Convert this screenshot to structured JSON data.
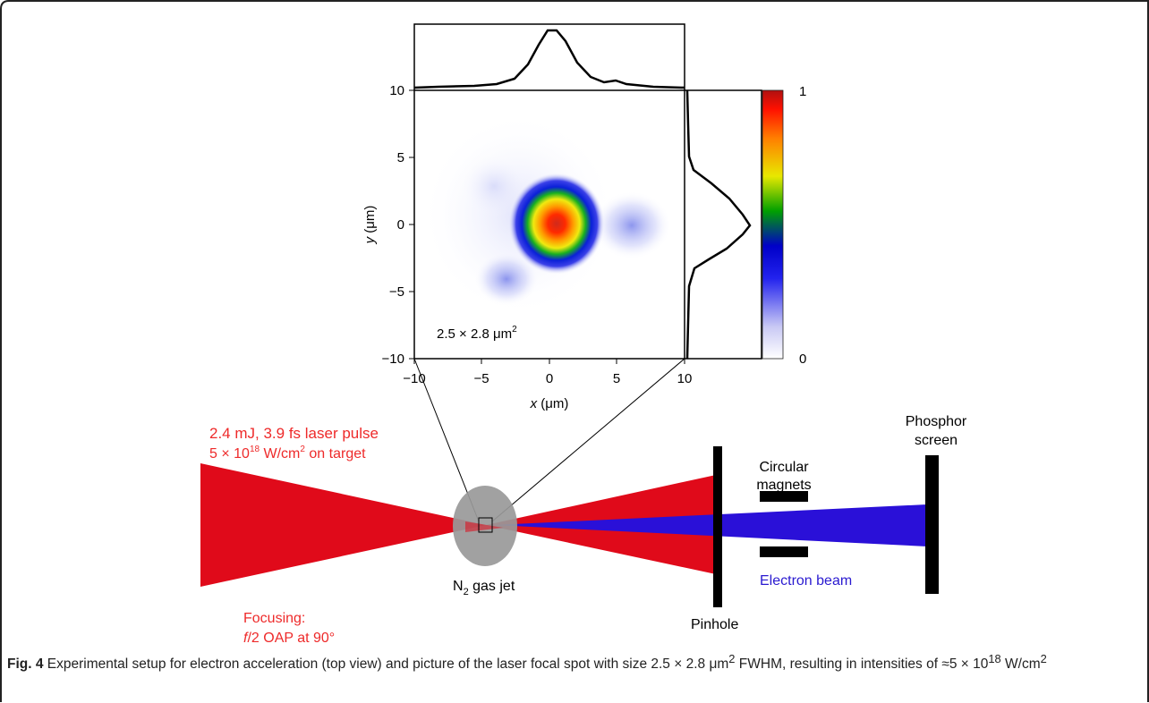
{
  "figure": {
    "heatmap": {
      "x_ticks": [
        "−10",
        "−5",
        "0",
        "5",
        "10"
      ],
      "y_ticks": [
        "10",
        "5",
        "0",
        "−5",
        "−10"
      ],
      "x_label_var": "x",
      "x_label_unit": " (μm)",
      "y_label_var": "y",
      "y_label_unit": " (μm)",
      "annotation_main": "2.5 × 2.8 μm",
      "annotation_sup": "2",
      "colorbar_max": "1",
      "colorbar_min": "0"
    },
    "setup": {
      "laser_line1": "2.4 mJ, 3.9 fs laser pulse",
      "laser_line2_a": "5 × 10",
      "laser_line2_sup": "18",
      "laser_line2_b": " W/cm",
      "laser_line2_sup2": "2",
      "laser_line2_c": " on target",
      "focusing_line1": "Focusing:",
      "focusing_line2_italic": "f",
      "focusing_line2_rest": "/2 OAP at 90°",
      "gas_jet_main": "N",
      "gas_jet_sub": "2",
      "gas_jet_rest": " gas jet",
      "pinhole": "Pinhole",
      "magnets_line1": "Circular",
      "magnets_line2": "magnets",
      "phosphor_line1": "Phosphor",
      "phosphor_line2": "screen",
      "electron_beam": "Electron beam"
    },
    "colors": {
      "laser_red": "#e00a1a",
      "laser_text": "#ee2a2a",
      "electron_blue": "#2a10d8",
      "electron_text": "#2a1ad0",
      "gas_jet_gray": "#999999"
    }
  },
  "caption": {
    "label": "Fig. 4",
    "text_a": " Experimental setup for electron acceleration (top view) and picture of the laser focal spot with size 2.5 × 2.8 μm",
    "sup_a": "2",
    "text_b": " FWHM, resulting in intensities of ≈5 × 10",
    "sup_b": "18",
    "text_c": " W/cm",
    "sup_c": "2"
  }
}
